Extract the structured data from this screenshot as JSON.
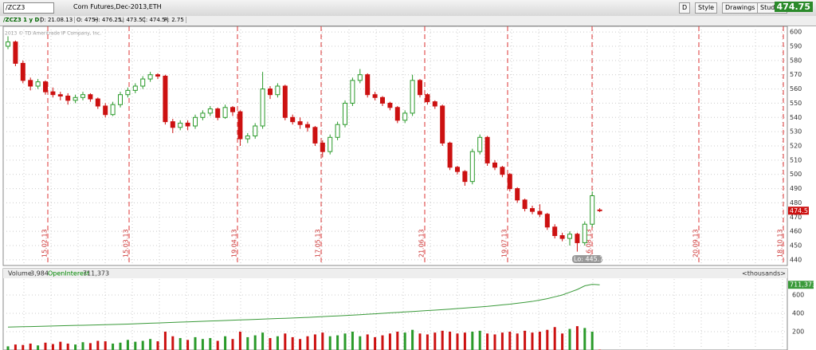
{
  "toolbar": {
    "symbol": "/ZCZ3",
    "description": "Corn Futures,Dec-2013,ETH",
    "buttons": [
      "D",
      "Style",
      "Drawings",
      "Studies"
    ],
    "last": "474.75"
  },
  "header": {
    "study": "/ZCZ3 1 y D",
    "items": [
      "D: 21.08.13",
      "O: 475",
      "H: 476.25",
      "L: 473.5",
      "C: 474.5",
      "R: 2.75"
    ]
  },
  "copyright": "2013 © TD Ameritrade IP Company, Inc.",
  "chart_data": [
    {
      "type": "candlestick",
      "ylim": [
        436,
        604
      ],
      "yticks": [
        440,
        450,
        460,
        470,
        480,
        490,
        500,
        510,
        520,
        530,
        540,
        550,
        560,
        570,
        580,
        590,
        600
      ],
      "up_color": "#2a9a2a",
      "down_color": "#cc1111",
      "dates": [
        "15.02.13",
        "15.03.13",
        "19.04.13",
        "17.05.13",
        "21.06.13",
        "19.07.13",
        "16.08.13",
        "20.09.13",
        "18.10.13"
      ],
      "low_label": "Lo: 445.75",
      "price_label": "474.5",
      "candles": [
        [
          590,
          597,
          588,
          593
        ],
        [
          593,
          594,
          576,
          578
        ],
        [
          578,
          580,
          564,
          566
        ],
        [
          566,
          568,
          559,
          562
        ],
        [
          562,
          567,
          560,
          565
        ],
        [
          565,
          566,
          556,
          558
        ],
        [
          558,
          561,
          554,
          556
        ],
        [
          556,
          558,
          552,
          555
        ],
        [
          555,
          557,
          549,
          552
        ],
        [
          552,
          556,
          550,
          554
        ],
        [
          554,
          558,
          552,
          556
        ],
        [
          556,
          557,
          551,
          553
        ],
        [
          553,
          554,
          546,
          548
        ],
        [
          548,
          550,
          540,
          542
        ],
        [
          542,
          551,
          541,
          549
        ],
        [
          549,
          558,
          547,
          556
        ],
        [
          556,
          561,
          554,
          559
        ],
        [
          559,
          564,
          557,
          562
        ],
        [
          562,
          569,
          560,
          567
        ],
        [
          567,
          572,
          565,
          570
        ],
        [
          570,
          571,
          567,
          569
        ],
        [
          569,
          570,
          535,
          537
        ],
        [
          537,
          539,
          529,
          533
        ],
        [
          533,
          538,
          531,
          536
        ],
        [
          536,
          538,
          531,
          534
        ],
        [
          534,
          542,
          532,
          540
        ],
        [
          540,
          545,
          538,
          543
        ],
        [
          543,
          548,
          541,
          546
        ],
        [
          546,
          547,
          538,
          540
        ],
        [
          540,
          549,
          539,
          547
        ],
        [
          547,
          548,
          541,
          544
        ],
        [
          544,
          545,
          520,
          525
        ],
        [
          525,
          529,
          522,
          527
        ],
        [
          527,
          536,
          525,
          534
        ],
        [
          534,
          572,
          532,
          560
        ],
        [
          560,
          562,
          553,
          556
        ],
        [
          556,
          564,
          554,
          562
        ],
        [
          562,
          563,
          538,
          540
        ],
        [
          540,
          542,
          535,
          537
        ],
        [
          537,
          540,
          532,
          535
        ],
        [
          535,
          537,
          530,
          533
        ],
        [
          533,
          534,
          520,
          522
        ],
        [
          522,
          524,
          512,
          516
        ],
        [
          516,
          528,
          514,
          526
        ],
        [
          526,
          537,
          524,
          535
        ],
        [
          535,
          552,
          533,
          550
        ],
        [
          550,
          568,
          548,
          566
        ],
        [
          566,
          574,
          564,
          570
        ],
        [
          570,
          571,
          554,
          556
        ],
        [
          556,
          558,
          552,
          554
        ],
        [
          554,
          555,
          548,
          550
        ],
        [
          550,
          551,
          545,
          547
        ],
        [
          547,
          548,
          536,
          538
        ],
        [
          538,
          545,
          536,
          543
        ],
        [
          543,
          570,
          541,
          566
        ],
        [
          566,
          567,
          554,
          556
        ],
        [
          556,
          557,
          549,
          551
        ],
        [
          551,
          552,
          546,
          548
        ],
        [
          548,
          549,
          520,
          522
        ],
        [
          522,
          523,
          503,
          505
        ],
        [
          505,
          506,
          500,
          502
        ],
        [
          502,
          503,
          492,
          495
        ],
        [
          495,
          518,
          493,
          516
        ],
        [
          516,
          528,
          514,
          526
        ],
        [
          526,
          527,
          506,
          508
        ],
        [
          508,
          510,
          503,
          505
        ],
        [
          505,
          506,
          498,
          500
        ],
        [
          500,
          501,
          488,
          490
        ],
        [
          490,
          491,
          480,
          482
        ],
        [
          482,
          483,
          474,
          476
        ],
        [
          476,
          478,
          472,
          474
        ],
        [
          474,
          479,
          470,
          472
        ],
        [
          472,
          473,
          461,
          463
        ],
        [
          463,
          465,
          455,
          457
        ],
        [
          457,
          459,
          453,
          455
        ],
        [
          455,
          460,
          450,
          458
        ],
        [
          458,
          459,
          445.75,
          452
        ],
        [
          452,
          467,
          450,
          465
        ],
        [
          465,
          488,
          463,
          485
        ],
        [
          475,
          476.25,
          473.5,
          474.5
        ]
      ]
    },
    {
      "type": "volume",
      "title": "Volume",
      "volume_text": "3,984",
      "oi_title": "OpenInterest",
      "oi_text": "711,373",
      "units": "<thousands>",
      "oi_label": "711,373",
      "ylim": [
        0,
        774
      ],
      "yticks": [
        200,
        400,
        600
      ],
      "up_color": "#2a9a2a",
      "down_color": "#cc1111",
      "oi_color": "#3a9a3a",
      "volume": [
        40,
        60,
        55,
        70,
        50,
        80,
        65,
        90,
        70,
        60,
        85,
        75,
        100,
        95,
        70,
        80,
        110,
        90,
        100,
        120,
        95,
        200,
        150,
        130,
        110,
        140,
        120,
        130,
        100,
        150,
        120,
        200,
        140,
        160,
        190,
        130,
        150,
        180,
        140,
        120,
        150,
        170,
        190,
        150,
        160,
        180,
        200,
        150,
        170,
        140,
        160,
        180,
        200,
        190,
        220,
        180,
        170,
        190,
        210,
        200,
        180,
        190,
        200,
        210,
        180,
        170,
        190,
        200,
        180,
        210,
        190,
        200,
        220,
        250,
        180,
        230,
        260,
        240,
        200,
        4
      ],
      "open_interest": [
        250,
        252,
        254,
        256,
        258,
        260,
        262,
        264,
        266,
        268,
        270,
        272,
        274,
        276,
        278,
        280,
        283,
        286,
        289,
        292,
        295,
        298,
        301,
        304,
        307,
        310,
        313,
        316,
        319,
        322,
        325,
        328,
        331,
        334,
        337,
        340,
        343,
        346,
        349,
        352,
        356,
        360,
        364,
        368,
        372,
        376,
        380,
        385,
        390,
        395,
        400,
        405,
        410,
        415,
        420,
        425,
        430,
        435,
        440,
        446,
        452,
        458,
        464,
        470,
        476,
        484,
        492,
        500,
        510,
        520,
        530,
        545,
        560,
        580,
        600,
        630,
        660,
        700,
        716,
        711.373
      ]
    }
  ]
}
